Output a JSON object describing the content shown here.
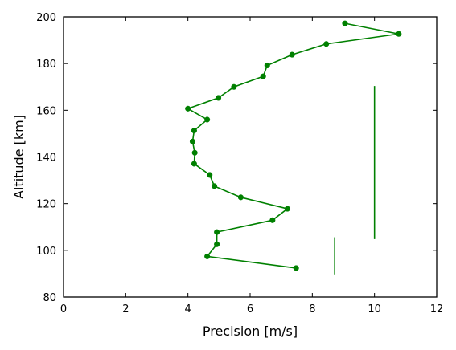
{
  "chart_data": {
    "type": "line",
    "title": "",
    "xlabel": "Precision [m/s]",
    "ylabel": "Altitude [km]",
    "xlim": [
      0,
      12
    ],
    "ylim": [
      80,
      200
    ],
    "xticks": [
      "0",
      "2",
      "4",
      "6",
      "8",
      "10",
      "12"
    ],
    "yticks": [
      "80",
      "100",
      "120",
      "140",
      "160",
      "180",
      "200"
    ],
    "grid": false,
    "legend": "none",
    "color": "#008000",
    "series": [
      {
        "points": [
          [
            9.05,
            197.2
          ],
          [
            10.78,
            192.7
          ],
          [
            8.45,
            188.4
          ],
          [
            7.35,
            183.8
          ],
          [
            6.55,
            179.2
          ],
          [
            6.42,
            174.5
          ],
          [
            5.48,
            170.0
          ],
          [
            4.98,
            165.3
          ],
          [
            4.0,
            160.7
          ],
          [
            4.62,
            156.0
          ],
          [
            4.2,
            151.3
          ],
          [
            4.15,
            146.6
          ],
          [
            4.22,
            141.8
          ],
          [
            4.2,
            137.1
          ],
          [
            4.7,
            132.3
          ],
          [
            4.85,
            127.5
          ],
          [
            5.7,
            122.7
          ],
          [
            7.2,
            117.8
          ],
          [
            6.72,
            112.9
          ],
          [
            4.93,
            107.8
          ],
          [
            4.93,
            102.6
          ],
          [
            4.62,
            97.4
          ],
          [
            7.48,
            92.4
          ]
        ]
      },
      {
        "points": [
          [
            10.0,
            104.8
          ],
          [
            10.0,
            170.4
          ]
        ]
      },
      {
        "points": [
          [
            8.72,
            89.7
          ],
          [
            8.72,
            105.6
          ]
        ]
      }
    ]
  }
}
